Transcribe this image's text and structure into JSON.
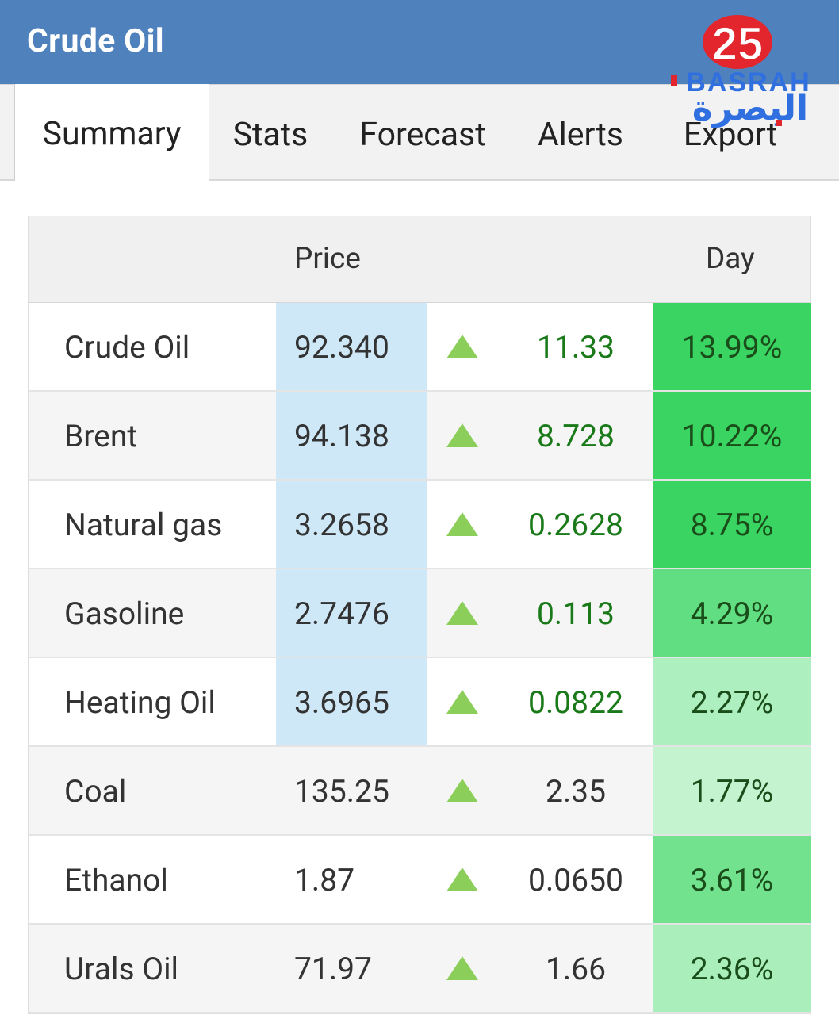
{
  "header": {
    "title": "Crude Oil"
  },
  "tabs": [
    {
      "label": "Summary",
      "active": true
    },
    {
      "label": "Stats",
      "active": false
    },
    {
      "label": "Forecast",
      "active": false
    },
    {
      "label": "Alerts",
      "active": false
    },
    {
      "label": "Export",
      "active": false
    }
  ],
  "watermark": {
    "number": "25",
    "latin": "BASRAH",
    "arabic": "البصرة"
  },
  "table": {
    "columns": {
      "price": "Price",
      "day": "Day"
    },
    "rows": [
      {
        "name": "Crude Oil",
        "price": "92.340",
        "change": "11.33",
        "pct": "13.99%",
        "direction": "up",
        "pct_color": "#39d461",
        "price_highlight": true,
        "change_color": "green"
      },
      {
        "name": "Brent",
        "price": "94.138",
        "change": "8.728",
        "pct": "10.22%",
        "direction": "up",
        "pct_color": "#39d461",
        "price_highlight": true,
        "change_color": "green"
      },
      {
        "name": "Natural gas",
        "price": "3.2658",
        "change": "0.2628",
        "pct": "8.75%",
        "direction": "up",
        "pct_color": "#39d461",
        "price_highlight": true,
        "change_color": "green"
      },
      {
        "name": "Gasoline",
        "price": "2.7476",
        "change": "0.113",
        "pct": "4.29%",
        "direction": "up",
        "pct_color": "#62de82",
        "price_highlight": true,
        "change_color": "green"
      },
      {
        "name": "Heating Oil",
        "price": "3.6965",
        "change": "0.0822",
        "pct": "2.27%",
        "direction": "up",
        "pct_color": "#adefbf",
        "price_highlight": true,
        "change_color": "green"
      },
      {
        "name": "Coal",
        "price": "135.25",
        "change": "2.35",
        "pct": "1.77%",
        "direction": "up",
        "pct_color": "#c3f3cf",
        "price_highlight": false,
        "change_color": "dark"
      },
      {
        "name": "Ethanol",
        "price": "1.87",
        "change": "0.0650",
        "pct": "3.61%",
        "direction": "up",
        "pct_color": "#72e28f",
        "price_highlight": false,
        "change_color": "dark"
      },
      {
        "name": "Urals Oil",
        "price": "71.97",
        "change": "1.66",
        "pct": "2.36%",
        "direction": "up",
        "pct_color": "#a9eebb",
        "price_highlight": false,
        "change_color": "dark"
      }
    ]
  },
  "colors": {
    "header_bg": "#4f81bd",
    "price_highlight": "#cfe8f8",
    "arrow_up": "#8bcf5a"
  }
}
